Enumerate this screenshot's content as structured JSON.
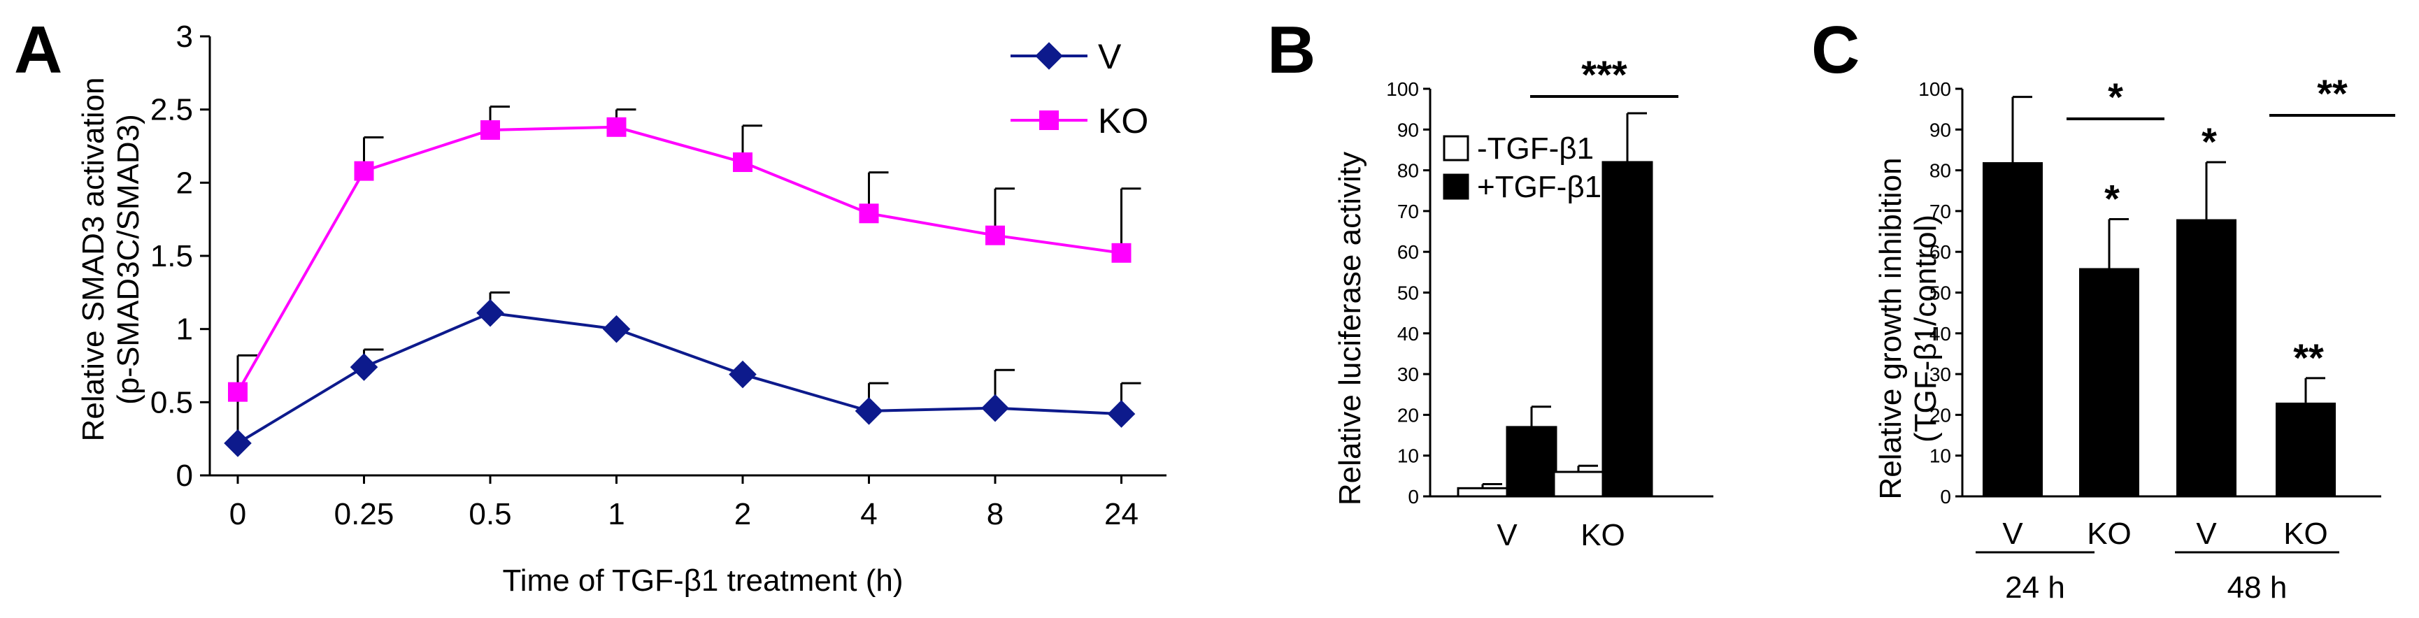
{
  "panels": {
    "a_letter": "A",
    "b_letter": "B",
    "c_letter": "C"
  },
  "colors": {
    "v": "#0d1a8c",
    "ko": "#ff00ff",
    "black": "#000000",
    "white": "#ffffff"
  },
  "chart_data": [
    {
      "panel": "A",
      "type": "line",
      "x": [
        "0",
        "0.25",
        "0.5",
        "1",
        "2",
        "4",
        "8",
        "24"
      ],
      "series": [
        {
          "name": "V",
          "values": [
            0.22,
            0.74,
            1.11,
            1.0,
            0.69,
            0.44,
            0.46,
            0.42
          ],
          "error": [
            0.6,
            0.12,
            0.14,
            0.0,
            0.0,
            0.19,
            0.26,
            0.21
          ]
        },
        {
          "name": "KO",
          "values": [
            0.57,
            2.08,
            2.36,
            2.38,
            2.14,
            1.79,
            1.64,
            1.52
          ],
          "error": [
            0.0,
            0.23,
            0.16,
            0.12,
            0.25,
            0.28,
            0.32,
            0.44
          ]
        }
      ],
      "xlabel": "Time of TGF-β1 treatment (h)",
      "ylabel": [
        "Relative SMAD3 activation",
        "(p-SMAD3C/SMAD3)"
      ],
      "ylim": [
        0,
        3
      ],
      "yticks": [
        0,
        0.5,
        1,
        1.5,
        2,
        2.5,
        3
      ],
      "legend": "top-right"
    },
    {
      "panel": "B",
      "type": "bar",
      "categories": [
        "V",
        "KO"
      ],
      "series": [
        {
          "name": "-TGF-β1",
          "values": [
            2,
            6
          ],
          "error": [
            1,
            1.5
          ]
        },
        {
          "name": "+TGF-β1",
          "values": [
            17,
            82
          ],
          "error": [
            5,
            12
          ]
        }
      ],
      "ylabel": "Relative luciferase activity",
      "ylim": [
        0,
        100
      ],
      "yticks": [
        0,
        10,
        20,
        30,
        40,
        50,
        60,
        70,
        80,
        90,
        100
      ],
      "annotation": "***",
      "legend": "top-left"
    },
    {
      "panel": "C",
      "type": "bar",
      "groups": [
        "24 h",
        "48 h"
      ],
      "categories": [
        "V",
        "KO",
        "V",
        "KO"
      ],
      "values": [
        82,
        56,
        68,
        23
      ],
      "error": [
        16,
        12,
        14,
        6
      ],
      "bar_stars": [
        "",
        "*",
        "*",
        "**"
      ],
      "group_stars": [
        "*",
        "**"
      ],
      "ylabel": [
        "Relative growth inhibition",
        "(TGF-β1/control)"
      ],
      "ylim": [
        0,
        100
      ],
      "yticks": [
        0,
        10,
        20,
        30,
        40,
        50,
        60,
        70,
        80,
        90,
        100
      ]
    }
  ]
}
